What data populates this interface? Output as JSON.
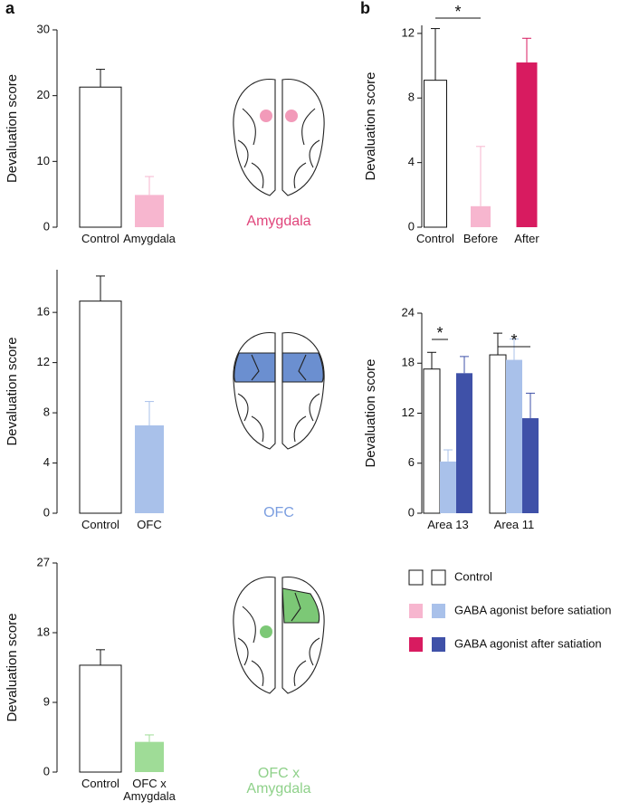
{
  "panel_labels": [
    "a",
    "b"
  ],
  "chart_data": [
    {
      "type": "bar",
      "ylabel": "Devaluation score",
      "categories": [
        "Control",
        "Amygdala"
      ],
      "values": [
        21.3,
        4.9
      ],
      "errors": [
        2.7,
        2.8
      ],
      "colors": [
        "#ffffff",
        "#f7b6cf"
      ],
      "ylim": [
        0,
        30
      ],
      "yticks": [
        0,
        10,
        20,
        30
      ],
      "annotation": "Amygdala",
      "annotation_color": "#e0457b"
    },
    {
      "type": "bar",
      "ylabel": "Devaluation score",
      "categories": [
        "Control",
        "OFC"
      ],
      "values": [
        16.9,
        7.0
      ],
      "errors": [
        2.0,
        1.9
      ],
      "colors": [
        "#ffffff",
        "#a9c1ea"
      ],
      "ylim": [
        0,
        19.4
      ],
      "yticks": [
        0,
        4,
        8,
        12,
        16
      ],
      "annotation": "OFC",
      "annotation_color": "#7b9ee0"
    },
    {
      "type": "bar",
      "ylabel": "Devaluation score",
      "categories": [
        "Control",
        "OFC x Amygdala"
      ],
      "values": [
        13.8,
        3.9
      ],
      "errors": [
        2.0,
        0.9
      ],
      "colors": [
        "#ffffff",
        "#9fdc97"
      ],
      "ylim": [
        0,
        27
      ],
      "yticks": [
        0,
        9,
        18,
        27
      ],
      "annotation": "OFC x Amygdala",
      "annotation_color": "#8fd18a"
    },
    {
      "type": "bar",
      "ylabel": "Devaluation score",
      "categories": [
        "Control",
        "Before",
        "After"
      ],
      "values": [
        9.1,
        1.3,
        10.2
      ],
      "errors": [
        3.2,
        3.7,
        1.5
      ],
      "colors": [
        "#ffffff",
        "#f7b6cf",
        "#d81b60"
      ],
      "ylim": [
        0,
        12.5
      ],
      "yticks": [
        0,
        4,
        8,
        12
      ],
      "significance": [
        {
          "between": [
            0,
            1
          ],
          "label": "*"
        }
      ]
    },
    {
      "type": "grouped_bar",
      "ylabel": "Devaluation score",
      "categories": [
        "Area 13",
        "Area 11"
      ],
      "series": [
        {
          "name": "Control",
          "color": "#ffffff",
          "values": [
            17.3,
            19.0
          ],
          "errors": [
            2.0,
            2.6
          ]
        },
        {
          "name": "GABA agonist before satiation",
          "color": "#a9c1ea",
          "values": [
            6.2,
            18.4
          ],
          "errors": [
            1.4,
            2.5
          ]
        },
        {
          "name": "GABA agonist after satiation",
          "color": "#3f51a8",
          "values": [
            16.8,
            11.4
          ],
          "errors": [
            2.0,
            3.0
          ]
        }
      ],
      "ylim": [
        0,
        24
      ],
      "yticks": [
        0,
        6,
        12,
        18,
        24
      ],
      "significance": [
        {
          "category": 0,
          "between": [
            0,
            1
          ],
          "label": "*"
        },
        {
          "category": 1,
          "between": [
            0,
            2
          ],
          "label": "*"
        }
      ]
    }
  ]
}
